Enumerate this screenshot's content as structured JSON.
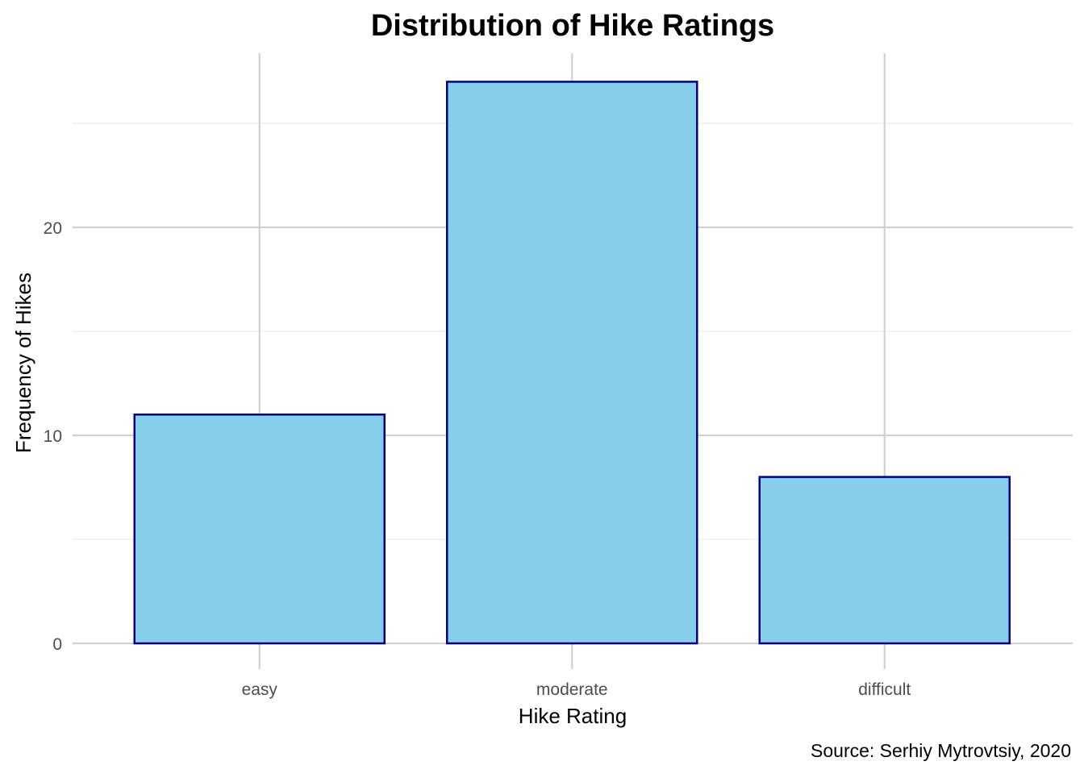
{
  "chart_data": {
    "type": "bar",
    "title": "Distribution of Hike Ratings",
    "xlabel": "Hike Rating",
    "ylabel": "Frequency of Hikes",
    "caption": "Source: Serhiy Mytrovtsiy, 2020",
    "categories": [
      "easy",
      "moderate",
      "difficult"
    ],
    "values": [
      11,
      27,
      8
    ],
    "ylim": [
      0,
      28
    ],
    "y_ticks": [
      0,
      10,
      20
    ],
    "y_tick_labels": [
      "0",
      "10",
      "20"
    ],
    "grid": true,
    "legend": "none"
  },
  "colors": {
    "bar_fill": "#87CEEB",
    "bar_stroke": "#000080",
    "grid_major": "#d0d0d0",
    "grid_minor": "#ebebeb",
    "tick_text": "#4d4d4d",
    "text": "#000000"
  }
}
